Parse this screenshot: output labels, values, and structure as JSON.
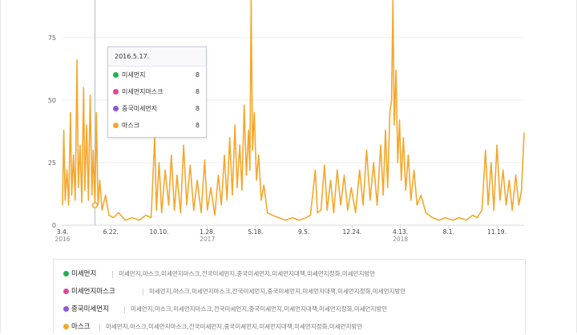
{
  "colors": {
    "series1": "#20b24e",
    "series2": "#e0489a",
    "series3": "#8d56e0",
    "series4": "#f4a72c",
    "axis": "#d8d8d8",
    "grid": "#eeeeee",
    "label": "#666666",
    "cursor": "#b5b8c4"
  },
  "tooltip": {
    "date": "2016.5.17.",
    "rows": [
      {
        "name": "미세먼지",
        "value": "8"
      },
      {
        "name": "미세먼지마스크",
        "value": "8"
      },
      {
        "name": "중국미세먼지",
        "value": "8"
      },
      {
        "name": "마스크",
        "value": "8"
      }
    ]
  },
  "legend": [
    {
      "name": "미세먼지",
      "keywords": "미세먼지,마스크,미세먼지마스크,전국미세먼지,중국미세먼지,미세먼지대책,미세먼지정화,미세먼지방안"
    },
    {
      "name": "미세먼지마스크",
      "keywords": "미세먼지,마스크,미세먼지마스크,전국미세먼지,중국미세먼지,미세먼지대책,미세먼지정화,미세먼지방안"
    },
    {
      "name": "중국미세먼지",
      "keywords": "미세먼지,마스크,미세먼지마스크,전국미세먼지,중국미세먼지,미세먼지대책,미세먼지정화,미세먼지방안"
    },
    {
      "name": "마스크",
      "keywords": "미세먼지,마스크,미세먼지마스크,전국미세먼지,중국미세먼지,미세먼지대책,미세먼지정화,미세먼지방안"
    }
  ],
  "chart_data": {
    "type": "line",
    "title": "",
    "xlabel": "",
    "ylabel": "",
    "ylim": [
      0,
      90
    ],
    "yticks": [
      0,
      25,
      50,
      75
    ],
    "grid": false,
    "x_start": "2016-03-04",
    "x_end": "2019-01-20",
    "xticks": [
      {
        "date": "2016-03-04",
        "label": "3.4.",
        "year": "2016"
      },
      {
        "date": "2016-06-22",
        "label": "6.22.",
        "year": ""
      },
      {
        "date": "2016-10-10",
        "label": "10.10.",
        "year": ""
      },
      {
        "date": "2017-01-28",
        "label": "1.28.",
        "year": "2017"
      },
      {
        "date": "2017-05-18",
        "label": "5.18.",
        "year": ""
      },
      {
        "date": "2017-09-05",
        "label": "9.5.",
        "year": ""
      },
      {
        "date": "2017-12-24",
        "label": "12.24.",
        "year": ""
      },
      {
        "date": "2018-04-13",
        "label": "4.13.",
        "year": "2018"
      },
      {
        "date": "2018-08-01",
        "label": "8.1.",
        "year": ""
      },
      {
        "date": "2018-11-19",
        "label": "11.19.",
        "year": ""
      }
    ],
    "hover_date": "2016-05-17",
    "series": [
      {
        "name": "마스크",
        "points": [
          [
            "2016-03-04",
            8
          ],
          [
            "2016-03-07",
            38
          ],
          [
            "2016-03-10",
            10
          ],
          [
            "2016-03-14",
            22
          ],
          [
            "2016-03-18",
            8
          ],
          [
            "2016-03-22",
            45
          ],
          [
            "2016-03-25",
            12
          ],
          [
            "2016-03-29",
            28
          ],
          [
            "2016-04-02",
            10
          ],
          [
            "2016-04-06",
            66
          ],
          [
            "2016-04-09",
            15
          ],
          [
            "2016-04-13",
            32
          ],
          [
            "2016-04-17",
            9
          ],
          [
            "2016-04-21",
            55
          ],
          [
            "2016-04-24",
            14
          ],
          [
            "2016-04-28",
            40
          ],
          [
            "2016-05-02",
            10
          ],
          [
            "2016-05-06",
            52
          ],
          [
            "2016-05-10",
            12
          ],
          [
            "2016-05-13",
            30
          ],
          [
            "2016-05-17",
            8
          ],
          [
            "2016-05-20",
            45
          ],
          [
            "2016-05-24",
            8
          ],
          [
            "2016-05-28",
            18
          ],
          [
            "2016-06-02",
            6
          ],
          [
            "2016-06-10",
            12
          ],
          [
            "2016-06-18",
            4
          ],
          [
            "2016-06-28",
            3
          ],
          [
            "2016-07-10",
            5
          ],
          [
            "2016-07-25",
            2
          ],
          [
            "2016-08-10",
            3
          ],
          [
            "2016-08-25",
            2
          ],
          [
            "2016-09-10",
            4
          ],
          [
            "2016-09-22",
            3
          ],
          [
            "2016-09-30",
            35
          ],
          [
            "2016-10-04",
            6
          ],
          [
            "2016-10-10",
            25
          ],
          [
            "2016-10-16",
            5
          ],
          [
            "2016-10-24",
            22
          ],
          [
            "2016-11-01",
            8
          ],
          [
            "2016-11-07",
            28
          ],
          [
            "2016-11-14",
            6
          ],
          [
            "2016-11-20",
            20
          ],
          [
            "2016-11-28",
            5
          ],
          [
            "2016-12-05",
            32
          ],
          [
            "2016-12-12",
            8
          ],
          [
            "2016-12-20",
            24
          ],
          [
            "2016-12-28",
            6
          ],
          [
            "2017-01-05",
            18
          ],
          [
            "2017-01-14",
            5
          ],
          [
            "2017-01-22",
            26
          ],
          [
            "2017-01-28",
            6
          ],
          [
            "2017-02-05",
            15
          ],
          [
            "2017-02-14",
            4
          ],
          [
            "2017-02-22",
            20
          ],
          [
            "2017-03-01",
            8
          ],
          [
            "2017-03-08",
            28
          ],
          [
            "2017-03-14",
            10
          ],
          [
            "2017-03-20",
            35
          ],
          [
            "2017-03-26",
            12
          ],
          [
            "2017-04-01",
            40
          ],
          [
            "2017-04-06",
            15
          ],
          [
            "2017-04-12",
            32
          ],
          [
            "2017-04-17",
            14
          ],
          [
            "2017-04-22",
            48
          ],
          [
            "2017-04-27",
            20
          ],
          [
            "2017-05-02",
            38
          ],
          [
            "2017-05-05",
            22
          ],
          [
            "2017-05-08",
            95
          ],
          [
            "2017-05-11",
            30
          ],
          [
            "2017-05-15",
            45
          ],
          [
            "2017-05-20",
            18
          ],
          [
            "2017-05-25",
            28
          ],
          [
            "2017-05-31",
            10
          ],
          [
            "2017-06-06",
            16
          ],
          [
            "2017-06-14",
            5
          ],
          [
            "2017-06-25",
            4
          ],
          [
            "2017-07-10",
            3
          ],
          [
            "2017-07-25",
            2
          ],
          [
            "2017-08-10",
            3
          ],
          [
            "2017-08-25",
            2
          ],
          [
            "2017-09-10",
            3
          ],
          [
            "2017-09-20",
            4
          ],
          [
            "2017-10-01",
            22
          ],
          [
            "2017-10-06",
            5
          ],
          [
            "2017-10-14",
            6
          ],
          [
            "2017-10-22",
            24
          ],
          [
            "2017-10-28",
            6
          ],
          [
            "2017-11-05",
            18
          ],
          [
            "2017-11-12",
            5
          ],
          [
            "2017-11-20",
            22
          ],
          [
            "2017-11-28",
            8
          ],
          [
            "2017-12-06",
            20
          ],
          [
            "2017-12-14",
            6
          ],
          [
            "2017-12-22",
            15
          ],
          [
            "2018-01-01",
            5
          ],
          [
            "2018-01-10",
            22
          ],
          [
            "2018-01-18",
            8
          ],
          [
            "2018-01-26",
            30
          ],
          [
            "2018-02-03",
            10
          ],
          [
            "2018-02-11",
            25
          ],
          [
            "2018-02-19",
            8
          ],
          [
            "2018-02-27",
            32
          ],
          [
            "2018-03-05",
            12
          ],
          [
            "2018-03-10",
            38
          ],
          [
            "2018-03-15",
            15
          ],
          [
            "2018-03-20",
            45
          ],
          [
            "2018-03-24",
            50
          ],
          [
            "2018-03-27",
            92
          ],
          [
            "2018-03-30",
            40
          ],
          [
            "2018-04-03",
            62
          ],
          [
            "2018-04-07",
            25
          ],
          [
            "2018-04-11",
            42
          ],
          [
            "2018-04-15",
            18
          ],
          [
            "2018-04-20",
            35
          ],
          [
            "2018-04-25",
            14
          ],
          [
            "2018-05-01",
            28
          ],
          [
            "2018-05-07",
            10
          ],
          [
            "2018-05-14",
            22
          ],
          [
            "2018-05-21",
            8
          ],
          [
            "2018-05-30",
            12
          ],
          [
            "2018-06-10",
            5
          ],
          [
            "2018-06-25",
            3
          ],
          [
            "2018-07-10",
            2
          ],
          [
            "2018-07-25",
            3
          ],
          [
            "2018-08-10",
            2
          ],
          [
            "2018-08-25",
            3
          ],
          [
            "2018-09-10",
            2
          ],
          [
            "2018-09-25",
            4
          ],
          [
            "2018-10-05",
            3
          ],
          [
            "2018-10-16",
            6
          ],
          [
            "2018-10-24",
            30
          ],
          [
            "2018-10-30",
            8
          ],
          [
            "2018-11-06",
            25
          ],
          [
            "2018-11-12",
            6
          ],
          [
            "2018-11-19",
            32
          ],
          [
            "2018-11-26",
            10
          ],
          [
            "2018-12-03",
            22
          ],
          [
            "2018-12-10",
            8
          ],
          [
            "2018-12-17",
            18
          ],
          [
            "2018-12-24",
            6
          ],
          [
            "2019-01-01",
            20
          ],
          [
            "2019-01-08",
            8
          ],
          [
            "2019-01-14",
            14
          ],
          [
            "2019-01-20",
            37
          ]
        ]
      }
    ]
  }
}
